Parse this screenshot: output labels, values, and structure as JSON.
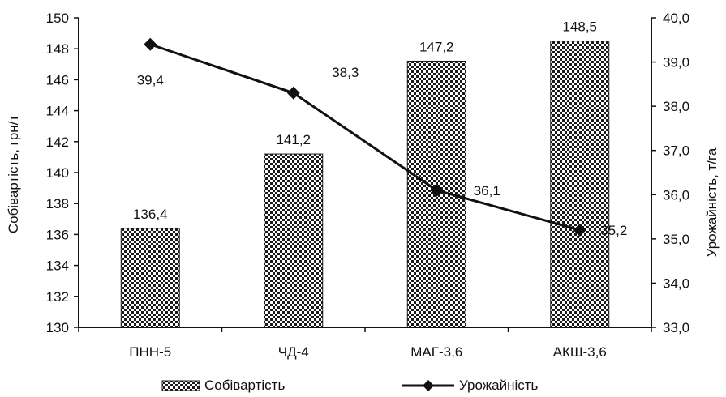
{
  "chart_data": {
    "type": "bar",
    "categories": [
      "ПНН-5",
      "ЧД-4",
      "МАГ-3,6",
      "АКШ-3,6"
    ],
    "series": [
      {
        "name": "Собівартість",
        "type": "bar",
        "axis": "left",
        "values": [
          136.4,
          141.2,
          147.2,
          148.5
        ],
        "labels": [
          "136,4",
          "141,2",
          "147,2",
          "148,5"
        ],
        "pattern": "checkerboard"
      },
      {
        "name": "Урожайність",
        "type": "line",
        "axis": "right",
        "marker": "diamond",
        "values": [
          39.4,
          38.3,
          36.1,
          35.2
        ],
        "labels": [
          "39,4",
          "38,3",
          "36,1",
          "35,2"
        ]
      }
    ],
    "ylabel": "Собівартість, грн/т",
    "ylim": [
      130,
      150
    ],
    "yticks": [
      "130",
      "132",
      "134",
      "136",
      "138",
      "140",
      "142",
      "144",
      "146",
      "148",
      "150"
    ],
    "y2label": "Урожайність, т/га",
    "y2lim": [
      33.0,
      40.0
    ],
    "y2ticks": [
      "33,0",
      "34,0",
      "35,0",
      "36,0",
      "37,0",
      "38,0",
      "39,0",
      "40,0"
    ],
    "grid": false,
    "legend": "bottom",
    "colors": {
      "bar_dark": "#1a1a1a",
      "bar_light": "#ffffff",
      "line": "#111111",
      "axis": "#111111"
    }
  }
}
